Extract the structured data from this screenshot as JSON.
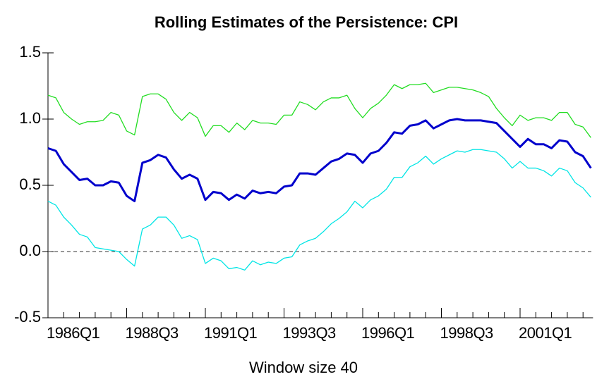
{
  "chart_data": {
    "type": "line",
    "title": "Rolling Estimates of the Persistence: CPI",
    "xlabel": "Window size 40",
    "categories": [
      "1986Q1",
      null,
      null,
      null,
      null,
      null,
      null,
      null,
      null,
      null,
      "1988Q3",
      null,
      null,
      null,
      null,
      null,
      null,
      null,
      null,
      null,
      "1991Q1",
      null,
      null,
      null,
      null,
      null,
      null,
      null,
      null,
      null,
      "1993Q3",
      null,
      null,
      null,
      null,
      null,
      null,
      null,
      null,
      null,
      "1996Q1",
      null,
      null,
      null,
      null,
      null,
      null,
      null,
      null,
      null,
      "1998Q3",
      null,
      null,
      null,
      null,
      null,
      null,
      null,
      null,
      null,
      "2001Q1",
      null,
      null,
      null,
      null,
      null,
      null,
      null,
      null,
      null
    ],
    "series": [
      {
        "color": "#22dd22",
        "width": 1.3,
        "values": [
          1.18,
          1.16,
          1.05,
          1.0,
          0.96,
          0.98,
          0.98,
          0.99,
          1.05,
          1.03,
          0.91,
          0.88,
          1.17,
          1.19,
          1.19,
          1.15,
          1.05,
          0.99,
          1.05,
          1.01,
          0.87,
          0.95,
          0.95,
          0.9,
          0.97,
          0.92,
          0.99,
          0.97,
          0.97,
          0.96,
          1.03,
          1.03,
          1.13,
          1.11,
          1.07,
          1.13,
          1.16,
          1.16,
          1.18,
          1.08,
          1.01,
          1.08,
          1.12,
          1.18,
          1.26,
          1.23,
          1.26,
          1.26,
          1.27,
          1.2,
          1.22,
          1.24,
          1.24,
          1.23,
          1.22,
          1.2,
          1.17,
          1.08,
          1.01,
          0.95,
          1.03,
          0.99,
          1.01,
          1.01,
          0.99,
          1.05,
          1.05,
          0.96,
          0.94,
          0.86
        ]
      },
      {
        "color": "#0000cc",
        "width": 3,
        "values": [
          0.78,
          0.76,
          0.66,
          0.6,
          0.54,
          0.55,
          0.5,
          0.5,
          0.53,
          0.52,
          0.42,
          0.38,
          0.67,
          0.69,
          0.73,
          0.71,
          0.62,
          0.55,
          0.58,
          0.55,
          0.39,
          0.45,
          0.44,
          0.39,
          0.43,
          0.4,
          0.46,
          0.44,
          0.45,
          0.44,
          0.49,
          0.5,
          0.59,
          0.59,
          0.58,
          0.63,
          0.68,
          0.7,
          0.74,
          0.73,
          0.67,
          0.74,
          0.76,
          0.82,
          0.9,
          0.89,
          0.95,
          0.96,
          0.99,
          0.93,
          0.96,
          0.99,
          1.0,
          0.99,
          0.99,
          0.99,
          0.98,
          0.97,
          0.91,
          0.85,
          0.79,
          0.85,
          0.81,
          0.81,
          0.78,
          0.84,
          0.83,
          0.75,
          0.72,
          0.63
        ]
      },
      {
        "color": "#00e5e5",
        "width": 1.3,
        "values": [
          0.38,
          0.35,
          0.26,
          0.2,
          0.13,
          0.11,
          0.03,
          0.02,
          0.01,
          0.0,
          -0.06,
          -0.11,
          0.17,
          0.2,
          0.26,
          0.26,
          0.2,
          0.1,
          0.12,
          0.09,
          -0.09,
          -0.05,
          -0.07,
          -0.13,
          -0.12,
          -0.14,
          -0.07,
          -0.1,
          -0.08,
          -0.09,
          -0.05,
          -0.04,
          0.05,
          0.08,
          0.1,
          0.15,
          0.21,
          0.25,
          0.3,
          0.38,
          0.33,
          0.39,
          0.42,
          0.47,
          0.56,
          0.56,
          0.64,
          0.67,
          0.72,
          0.66,
          0.7,
          0.73,
          0.76,
          0.75,
          0.77,
          0.77,
          0.76,
          0.75,
          0.7,
          0.63,
          0.68,
          0.63,
          0.63,
          0.61,
          0.57,
          0.63,
          0.61,
          0.52,
          0.48,
          0.41
        ]
      }
    ],
    "ylim": [
      -0.5,
      1.5
    ],
    "yticks": [
      -0.5,
      {
        "value": 0,
        "label": "0.0"
      },
      0.5,
      {
        "value": 1,
        "label": "1.0"
      },
      1.5
    ],
    "reference_line": 0
  }
}
